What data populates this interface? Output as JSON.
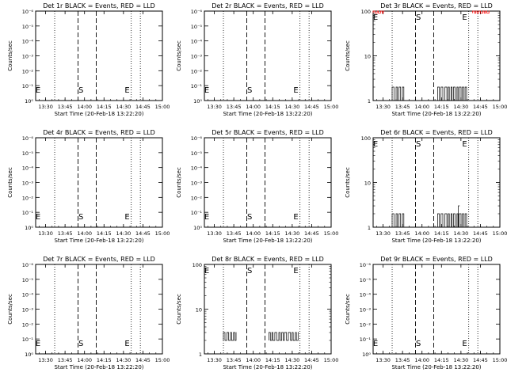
{
  "figure": {
    "xlabel": "Start Time (20-Feb-18 13:22:20)",
    "ylabel": "Counts/sec",
    "x_tick_labels": [
      "13:30",
      "13:45",
      "14:00",
      "14:15",
      "14:30",
      "14:45",
      "15:00"
    ],
    "marker_labels": [
      "S",
      "E"
    ]
  },
  "colors": {
    "events": "#000000",
    "lld": "#ff0000"
  },
  "chart_data": [
    {
      "panel": "1r",
      "type": "line",
      "title": "Det 1r BLACK = Events, RED = LLD",
      "xlabel": "Start Time (20-Feb-18 13:22:20)",
      "ylabel": "Counts/sec",
      "xlim": [
        "13:22:20",
        "15:00"
      ],
      "ylim": [
        1,
        1e-06
      ],
      "y_tick_labels": [
        "10⁰",
        "10⁻¹",
        "10⁻²",
        "10⁻³",
        "10⁻⁴",
        "10⁻⁵",
        "10⁻⁶"
      ],
      "x_ticks": [
        "13:30",
        "13:45",
        "14:00",
        "14:15",
        "14:30",
        "14:45",
        "15:00"
      ],
      "markers": {
        "S": "13:56",
        "E": "14:39"
      },
      "lines": {
        "dashed": [
          "13:55",
          "14:09"
        ],
        "dotted": [
          "13:37",
          "14:36",
          "14:43"
        ]
      },
      "series": []
    },
    {
      "panel": "2r",
      "type": "line",
      "title": "Det 2r BLACK = Events, RED = LLD",
      "xlabel": "Start Time (20-Feb-18 13:22:20)",
      "ylabel": "Counts/sec",
      "xlim": [
        "13:22:20",
        "15:00"
      ],
      "ylim": [
        1,
        1e-06
      ],
      "y_tick_labels": [
        "10⁰",
        "10⁻¹",
        "10⁻²",
        "10⁻³",
        "10⁻⁴",
        "10⁻⁵",
        "10⁻⁶"
      ],
      "x_ticks": [
        "13:30",
        "13:45",
        "14:00",
        "14:15",
        "14:30",
        "14:45",
        "15:00"
      ],
      "markers": {
        "S": "13:56",
        "E": "14:39"
      },
      "lines": {
        "dashed": [
          "13:55",
          "14:09"
        ],
        "dotted": [
          "13:37",
          "14:36",
          "14:43"
        ]
      },
      "series": []
    },
    {
      "panel": "3r",
      "type": "line",
      "title": "Det 3r BLACK = Events, RED = LLD",
      "xlabel": "Start Time (20-Feb-18 13:22:20)",
      "ylabel": "Counts/sec",
      "xlim": [
        "13:22:20",
        "15:00"
      ],
      "ylim": [
        1,
        100
      ],
      "y_tick_labels": [
        "1",
        "10",
        "100"
      ],
      "y_tick_values": [
        1,
        10,
        100
      ],
      "x_ticks": [
        "13:30",
        "13:45",
        "14:00",
        "14:15",
        "14:30",
        "14:45",
        "15:00"
      ],
      "markers": {
        "S": "13:56",
        "E": "14:39"
      },
      "lines": {
        "dashed": [
          "13:55",
          "14:09"
        ],
        "dotted": [
          "13:37",
          "14:36",
          "14:43"
        ]
      },
      "series": [
        {
          "color": "#000000",
          "segments": [
            {
              "start": "13:37",
              "end": "13:47",
              "low": 1,
              "high": 2
            },
            {
              "start": "14:12",
              "end": "14:35",
              "low": 1,
              "high": 2
            }
          ]
        },
        {
          "color": "#ff0000",
          "segments": [
            {
              "start": "13:22:20",
              "end": "13:31",
              "low": 90,
              "high": 100
            },
            {
              "start": "14:39",
              "end": "14:52",
              "low": 90,
              "high": 100
            }
          ]
        }
      ]
    },
    {
      "panel": "4r",
      "type": "line",
      "title": "Det 4r BLACK = Events, RED = LLD",
      "xlabel": "Start Time (20-Feb-18 13:22:20)",
      "ylabel": "Counts/sec",
      "xlim": [
        "13:22:20",
        "15:00"
      ],
      "ylim": [
        1,
        1e-06
      ],
      "y_tick_labels": [
        "10⁰",
        "10⁻¹",
        "10⁻²",
        "10⁻³",
        "10⁻⁴",
        "10⁻⁵",
        "10⁻⁶"
      ],
      "x_ticks": [
        "13:30",
        "13:45",
        "14:00",
        "14:15",
        "14:30",
        "14:45",
        "15:00"
      ],
      "markers": {
        "S": "13:56",
        "E": "14:39"
      },
      "lines": {
        "dashed": [
          "13:55",
          "14:09"
        ],
        "dotted": [
          "13:37",
          "14:36",
          "14:43"
        ]
      },
      "series": []
    },
    {
      "panel": "5r",
      "type": "line",
      "title": "Det 5r BLACK = Events, RED = LLD",
      "xlabel": "Start Time (20-Feb-18 13:22:20)",
      "ylabel": "Counts/sec",
      "xlim": [
        "13:22:20",
        "15:00"
      ],
      "ylim": [
        1,
        1e-06
      ],
      "y_tick_labels": [
        "10⁰",
        "10⁻¹",
        "10⁻²",
        "10⁻³",
        "10⁻⁴",
        "10⁻⁵",
        "10⁻⁶"
      ],
      "x_ticks": [
        "13:30",
        "13:45",
        "14:00",
        "14:15",
        "14:30",
        "14:45",
        "15:00"
      ],
      "markers": {
        "S": "13:56",
        "E": "14:39"
      },
      "lines": {
        "dashed": [
          "13:55",
          "14:09"
        ],
        "dotted": [
          "13:37",
          "14:36",
          "14:43"
        ]
      },
      "series": []
    },
    {
      "panel": "6r",
      "type": "line",
      "title": "Det 6r BLACK = Events, RED = LLD",
      "xlabel": "Start Time (20-Feb-18 13:22:20)",
      "ylabel": "Counts/sec",
      "xlim": [
        "13:22:20",
        "15:00"
      ],
      "ylim": [
        1,
        100
      ],
      "y_tick_labels": [
        "1",
        "10",
        "100"
      ],
      "y_tick_values": [
        1,
        10,
        100
      ],
      "x_ticks": [
        "13:30",
        "13:45",
        "14:00",
        "14:15",
        "14:30",
        "14:45",
        "15:00"
      ],
      "markers": {
        "S": "13:56",
        "E": "14:39"
      },
      "lines": {
        "dashed": [
          "13:55",
          "14:09"
        ],
        "dotted": [
          "13:37",
          "14:36",
          "14:43"
        ]
      },
      "series": [
        {
          "color": "#000000",
          "segments": [
            {
              "start": "13:37",
              "end": "13:47",
              "low": 1,
              "high": 2
            },
            {
              "start": "14:12",
              "end": "14:35",
              "low": 1,
              "high": 2
            },
            {
              "start": "14:28",
              "end": "14:29",
              "low": 1,
              "high": 3
            }
          ]
        }
      ]
    },
    {
      "panel": "7r",
      "type": "line",
      "title": "Det 7r BLACK = Events, RED = LLD",
      "xlabel": "Start Time (20-Feb-18 13:22:20)",
      "ylabel": "Counts/sec",
      "xlim": [
        "13:22:20",
        "15:00"
      ],
      "ylim": [
        1,
        1e-06
      ],
      "y_tick_labels": [
        "10⁰",
        "10⁻¹",
        "10⁻²",
        "10⁻³",
        "10⁻⁴",
        "10⁻⁵",
        "10⁻⁶"
      ],
      "x_ticks": [
        "13:30",
        "13:45",
        "14:00",
        "14:15",
        "14:30",
        "14:45",
        "15:00"
      ],
      "markers": {
        "S": "13:56",
        "E": "14:39"
      },
      "lines": {
        "dashed": [
          "13:55",
          "14:09"
        ],
        "dotted": [
          "13:37",
          "14:36",
          "14:43"
        ]
      },
      "series": []
    },
    {
      "panel": "8r",
      "type": "line",
      "title": "Det 8r BLACK = Events, RED = LLD",
      "xlabel": "Start Time (20-Feb-18 13:22:20)",
      "ylabel": "Counts/sec",
      "xlim": [
        "13:22:20",
        "15:00"
      ],
      "ylim": [
        1,
        100
      ],
      "y_tick_labels": [
        "1",
        "10",
        "100"
      ],
      "y_tick_values": [
        1,
        10,
        100
      ],
      "x_ticks": [
        "13:30",
        "13:45",
        "14:00",
        "14:15",
        "14:30",
        "14:45",
        "15:00"
      ],
      "markers": {
        "S": "13:56",
        "E": "14:39"
      },
      "lines": {
        "dashed": [
          "13:55",
          "14:09"
        ],
        "dotted": [
          "13:37",
          "14:36",
          "14:43"
        ]
      },
      "series": [
        {
          "color": "#000000",
          "segments": [
            {
              "start": "13:37",
              "end": "13:47",
              "low": 2,
              "high": 3
            },
            {
              "start": "14:12",
              "end": "14:35",
              "low": 2,
              "high": 3
            }
          ]
        }
      ]
    },
    {
      "panel": "9r",
      "type": "line",
      "title": "Det 9r BLACK = Events, RED = LLD",
      "xlabel": "Start Time (20-Feb-18 13:22:20)",
      "ylabel": "Counts/sec",
      "xlim": [
        "13:22:20",
        "15:00"
      ],
      "ylim": [
        1,
        1e-06
      ],
      "y_tick_labels": [
        "10⁰",
        "10⁻¹",
        "10⁻²",
        "10⁻³",
        "10⁻⁴",
        "10⁻⁵",
        "10⁻⁶"
      ],
      "x_ticks": [
        "13:30",
        "13:45",
        "14:00",
        "14:15",
        "14:30",
        "14:45",
        "15:00"
      ],
      "markers": {
        "S": "13:56",
        "E": "14:39"
      },
      "lines": {
        "dashed": [
          "13:55",
          "14:09"
        ],
        "dotted": [
          "13:37",
          "14:36",
          "14:43"
        ]
      },
      "series": []
    }
  ]
}
